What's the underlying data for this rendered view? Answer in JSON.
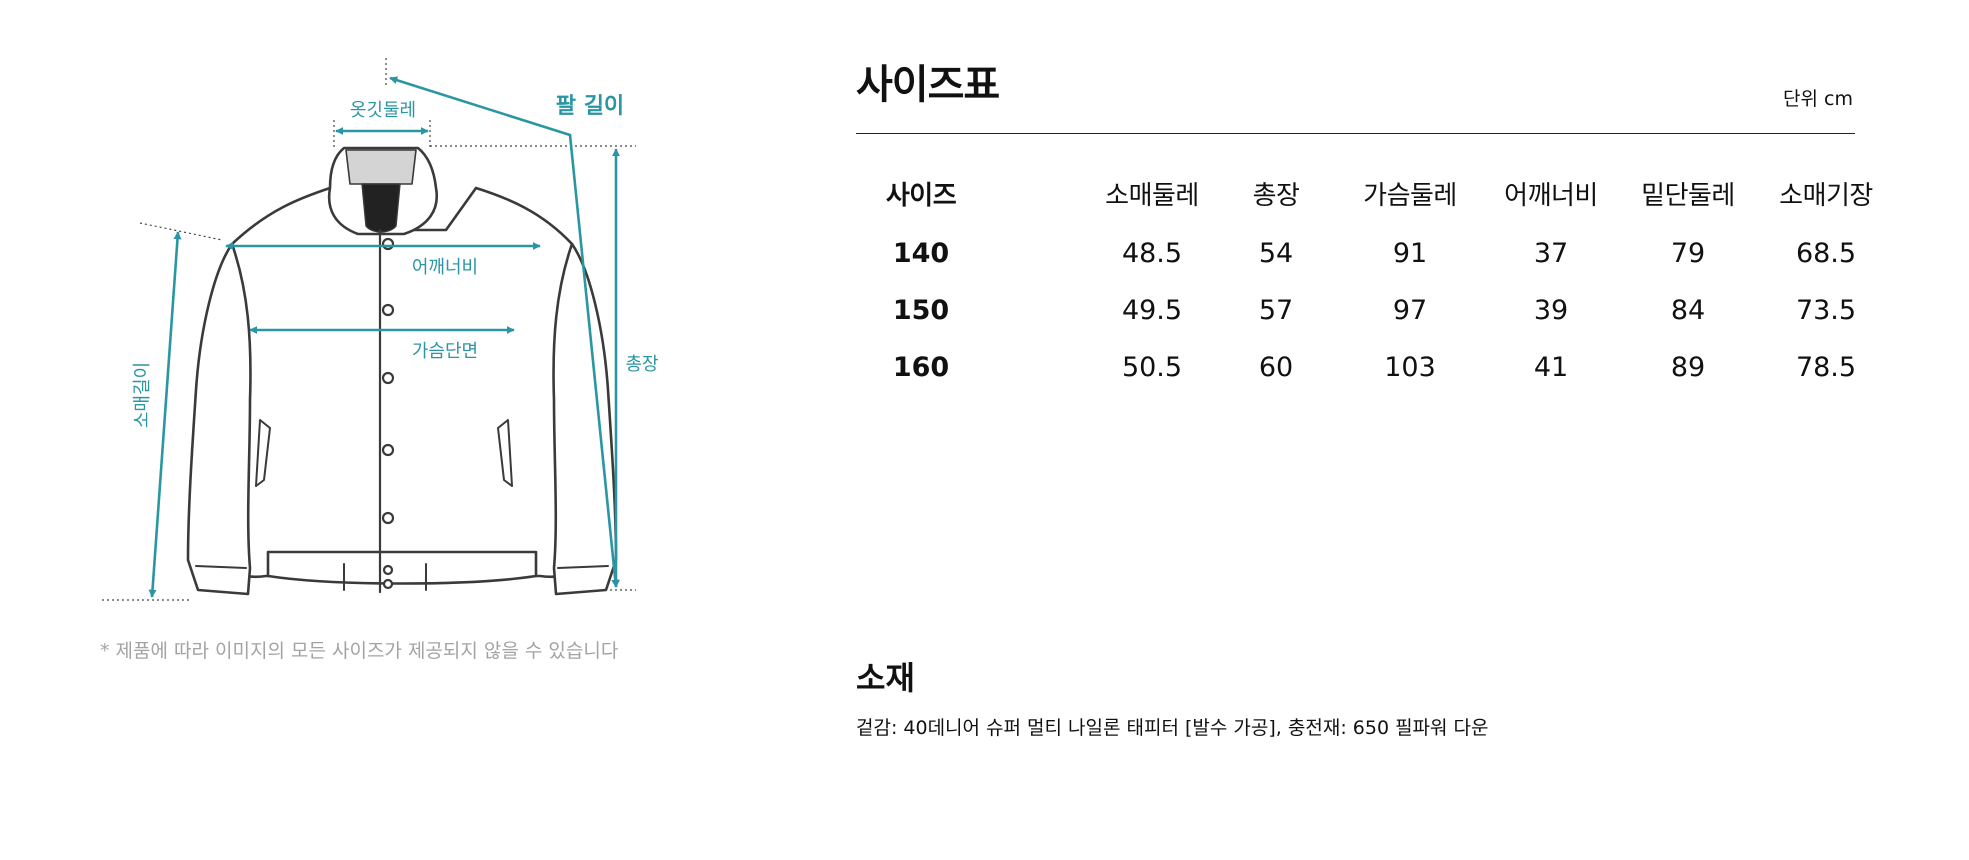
{
  "diagram": {
    "labels": {
      "collar": "옷깃둘레",
      "arm_length": "팔 길이",
      "shoulder": "어깨너비",
      "chest": "가슴단면",
      "total_length": "총장",
      "sleeve_length": "소매길이"
    },
    "accent_color": "#2b96a3",
    "note": "* 제품에 따라 이미지의 모든 사이즈가 제공되지 않을 수 있습니다"
  },
  "size_chart": {
    "title": "사이즈표",
    "unit": "단위 cm",
    "columns": [
      "사이즈",
      "소매둘레",
      "총장",
      "가슴둘레",
      "어깨너비",
      "밑단둘레",
      "소매기장"
    ],
    "rows": [
      [
        "140",
        "48.5",
        "54",
        "91",
        "37",
        "79",
        "68.5"
      ],
      [
        "150",
        "49.5",
        "57",
        "97",
        "39",
        "84",
        "73.5"
      ],
      [
        "160",
        "50.5",
        "60",
        "103",
        "41",
        "89",
        "78.5"
      ]
    ]
  },
  "material": {
    "title": "소재",
    "text": "겉감: 40데니어 슈퍼 멀티 나일론 태피터 [발수 가공], 충전재: 650 필파워 다운"
  }
}
